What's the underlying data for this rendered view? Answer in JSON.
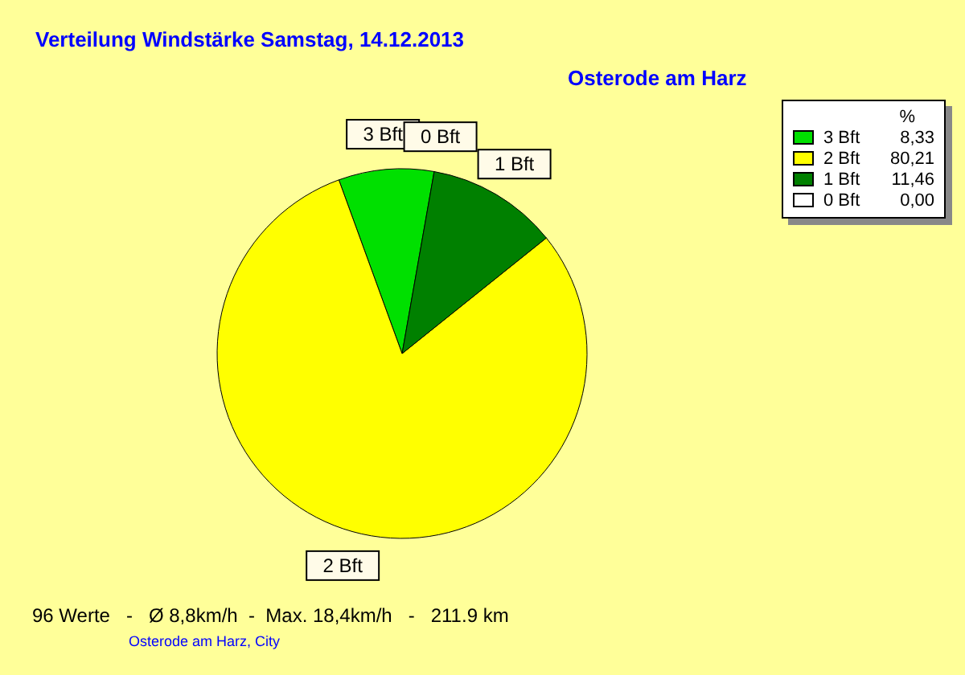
{
  "chart_data": {
    "type": "pie",
    "title": "Verteilung Windstärke  Samstag, 14.12.2013",
    "subtitle": "Osterode am Harz",
    "categories": [
      "3 Bft",
      "2 Bft",
      "1 Bft",
      "0 Bft"
    ],
    "values": [
      8.33,
      80.21,
      11.46,
      0
    ],
    "value_labels": [
      "8,33",
      "80,21",
      "11,46",
      "0,00"
    ],
    "colors": [
      "#00e000",
      "#ffff00",
      "#008000",
      "#ffffff"
    ],
    "legend": "top right",
    "legend_title": "%",
    "annotations": [
      "96 Werte   -   Ø 8,8km/h  -  Max. 18,4km/h   -   211.9 km",
      "Osterode am Harz, City"
    ]
  }
}
